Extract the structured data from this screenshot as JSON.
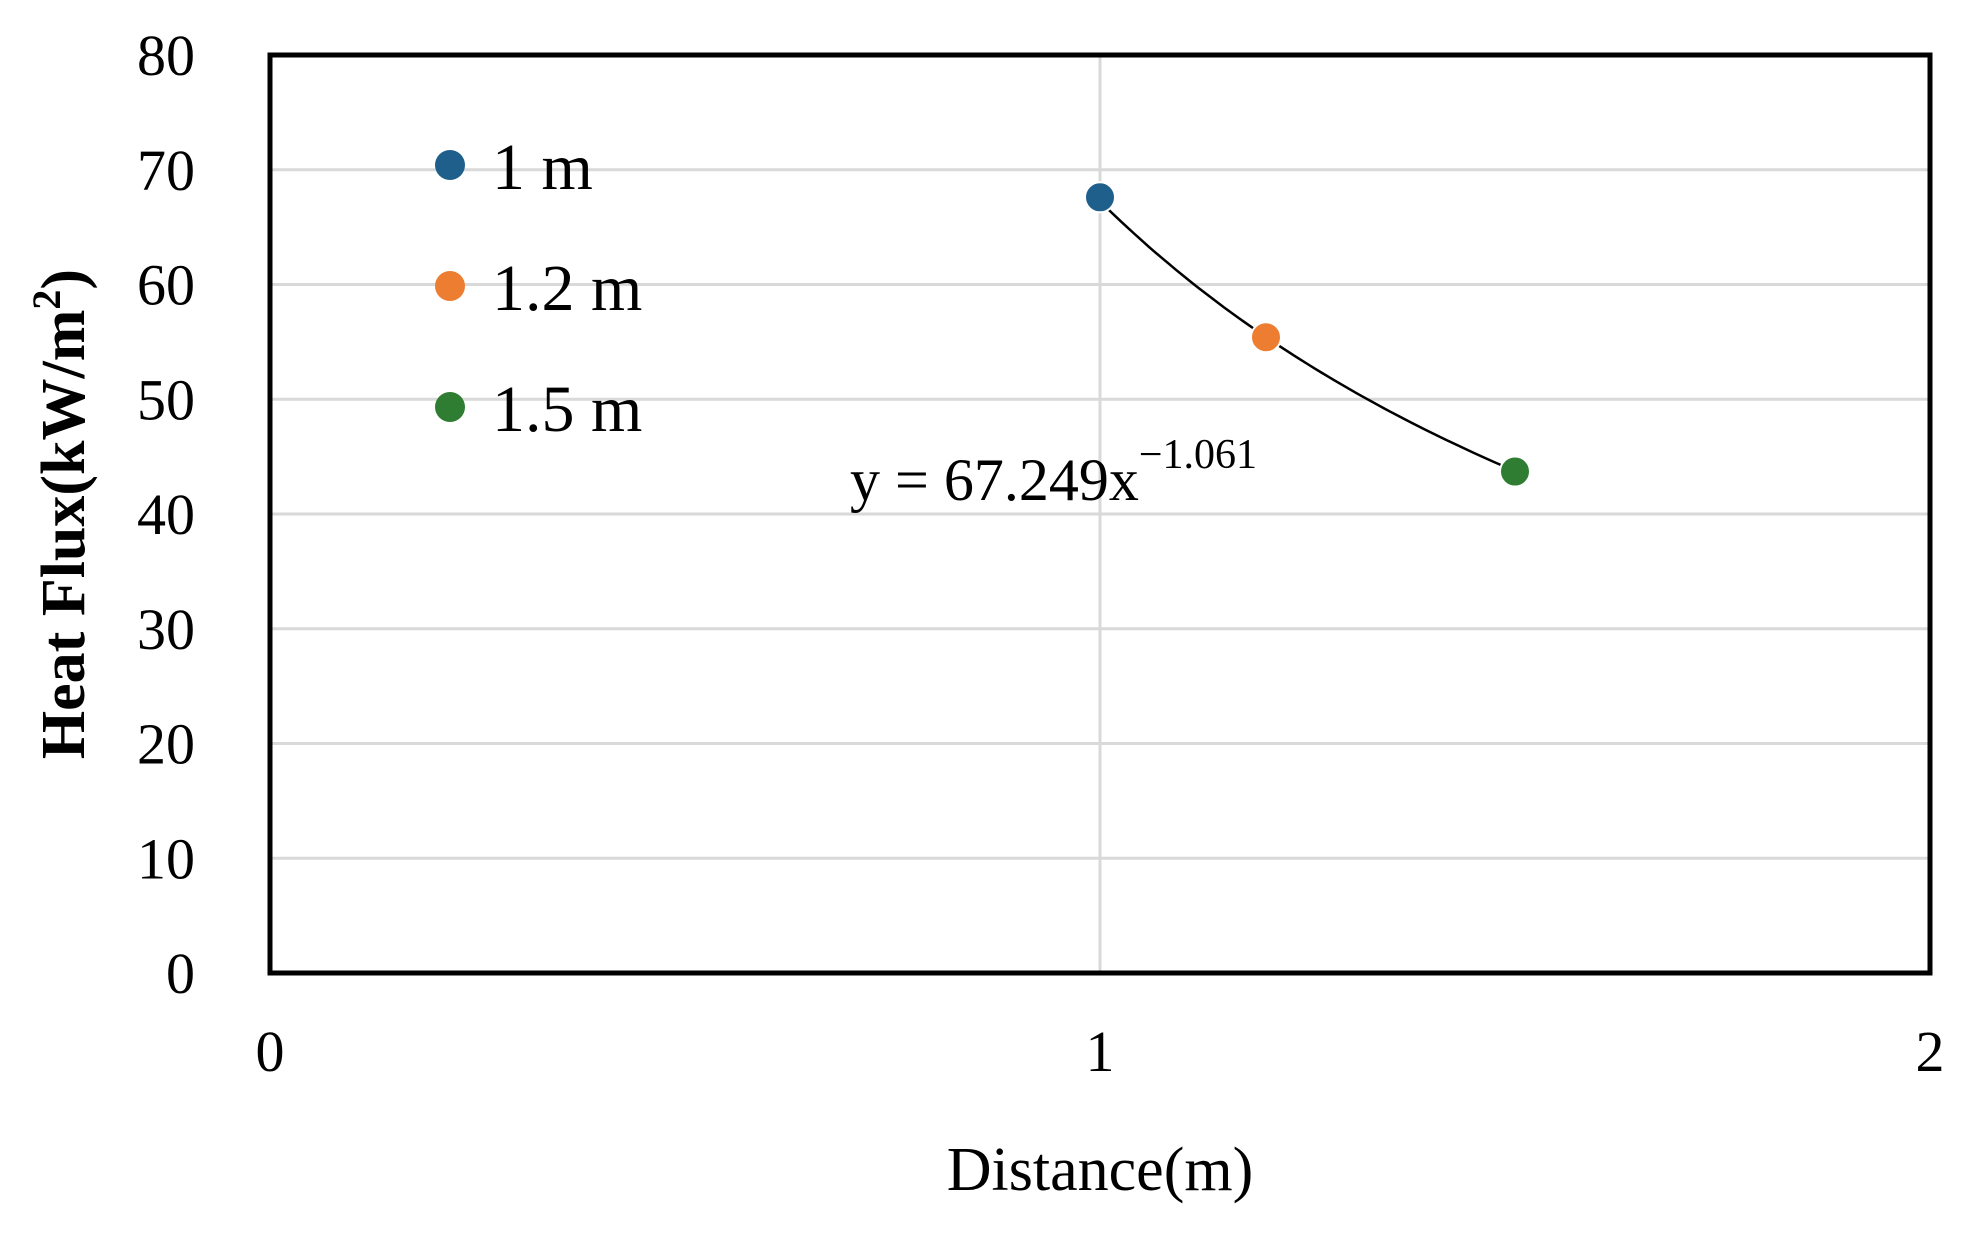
{
  "chart_data": {
    "type": "scatter",
    "xlabel": "Distance(m)",
    "ylabel": "Heat Flux(kW/m",
    "ylabel_sup": "2",
    "ylabel_close": ")",
    "xlim": [
      0,
      2
    ],
    "ylim": [
      0,
      80
    ],
    "x_ticks": [
      0,
      1,
      2
    ],
    "y_ticks": [
      0,
      10,
      20,
      30,
      40,
      50,
      60,
      70,
      80
    ],
    "grid": true,
    "legend_position": "top-left",
    "series": [
      {
        "name": "1 m",
        "color": "#1f5f8b",
        "points": [
          {
            "x": 1.0,
            "y": 67.6
          }
        ]
      },
      {
        "name": "1.2 m",
        "color": "#ed7d31",
        "points": [
          {
            "x": 1.2,
            "y": 55.4
          }
        ]
      },
      {
        "name": "1.5 m",
        "color": "#2e7d32",
        "points": [
          {
            "x": 1.5,
            "y": 43.7
          }
        ]
      }
    ],
    "trendline": {
      "type": "power",
      "a": 67.249,
      "b": -1.061,
      "x_range": [
        1.0,
        1.5
      ],
      "color": "#000000",
      "equation_main": "y = 67.249x",
      "equation_exp": "−1.061"
    }
  }
}
